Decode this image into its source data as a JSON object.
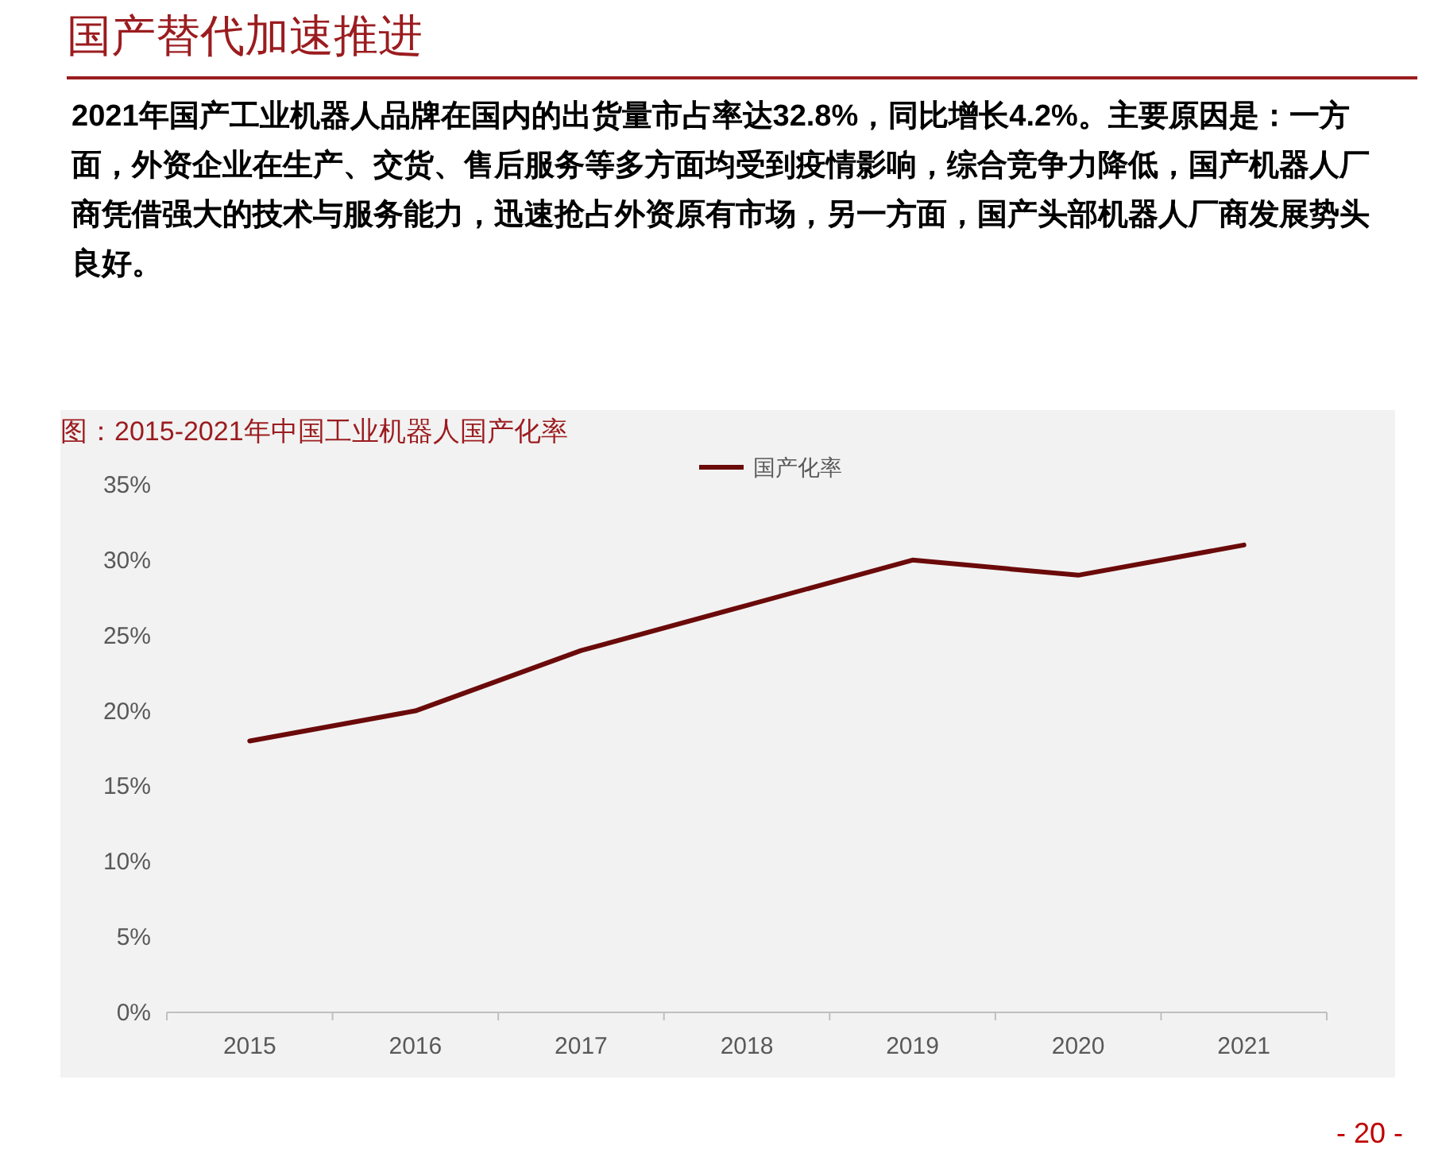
{
  "chart_data": {
    "type": "line",
    "title": "国产替代加速推进",
    "subtitle": "图：2015-2021年中国工业机器人国产化率",
    "annotations": [
      "2021年国产工业机器人品牌在国内的出货量市占率达32.8%，同比增长4.2%。主要原因是：一方面，外资企业在生产、交货、售后服务等多方面均受到疫情影响，综合竞争力降低，国产机器人厂商凭借强大的技术与服务能力，迅速抢占外资原有市场，另一方面，国产头部机器人厂商发展势头良好。",
      "- 20 -"
    ],
    "categories": [
      "2015",
      "2016",
      "2017",
      "2018",
      "2019",
      "2020",
      "2021"
    ],
    "series": [
      {
        "name": "国产化率",
        "color": "#6b0a0a",
        "values": [
          18,
          20,
          24,
          27,
          30,
          29,
          31
        ]
      }
    ],
    "ylim": [
      0,
      35
    ],
    "yticks": [
      {
        "value": 0,
        "label": "0%"
      },
      {
        "value": 5,
        "label": "5%"
      },
      {
        "value": 10,
        "label": "10%"
      },
      {
        "value": 15,
        "label": "15%"
      },
      {
        "value": 20,
        "label": "20%"
      },
      {
        "value": 25,
        "label": "25%"
      },
      {
        "value": 30,
        "label": "30%"
      },
      {
        "value": 35,
        "label": "35%"
      }
    ],
    "grid": false,
    "legend": "top",
    "marker": "none",
    "line_style": "solid"
  }
}
